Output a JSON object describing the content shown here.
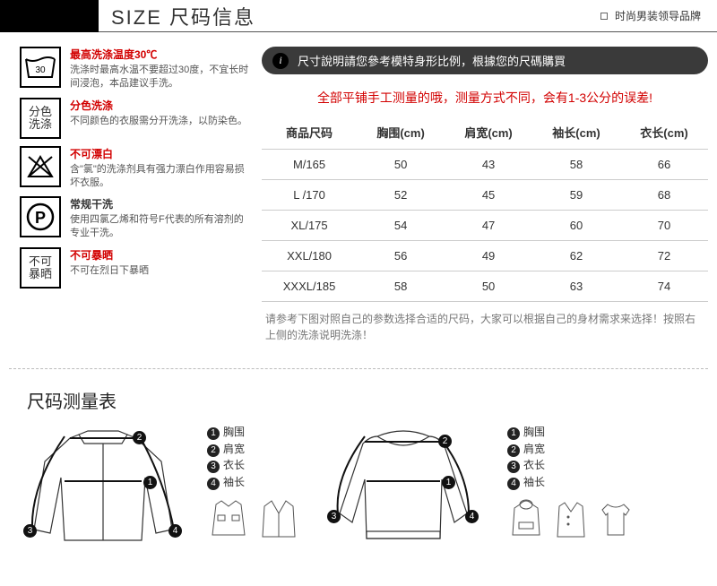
{
  "topbar": {
    "title": "SIZE 尺码信息",
    "brand_text": "时尚男装领导品牌"
  },
  "care": [
    {
      "icon_svg": "wash30",
      "title": "最高洗涤温度30℃",
      "title_color": "red",
      "desc": "洗涤时最高水温不要超过30度，不宜长时间浸泡，本品建议手洗。"
    },
    {
      "icon_svg": "text",
      "icon_text": "分色\n洗涤",
      "title": "分色洗涤",
      "title_color": "red",
      "desc": "不同颜色的衣服需分开洗涤，以防染色。"
    },
    {
      "icon_svg": "nobleach",
      "title": "不可漂白",
      "title_color": "red",
      "desc": "含\"氯\"的洗涤剂具有强力漂白作用容易损坏衣服。"
    },
    {
      "icon_svg": "pcircle",
      "title": "常规干洗",
      "title_color": "black",
      "desc": "使用四氯乙烯和符号F代表的所有溶剂的专业干洗。"
    },
    {
      "icon_svg": "text",
      "icon_text": "不可\n暴晒",
      "title": "不可暴晒",
      "title_color": "red",
      "desc": "不可在烈日下暴晒"
    }
  ],
  "pill": {
    "text": "尺寸說明請您參考模特身形比例，根據您的尺碼購買"
  },
  "warn": "全部平铺手工测量的哦，测量方式不同，会有1-3公分的误差!",
  "table": {
    "headers": [
      "商品尺码",
      "胸围(cm)",
      "肩宽(cm)",
      "袖长(cm)",
      "衣长(cm)"
    ],
    "rows": [
      [
        "M/165",
        "50",
        "43",
        "58",
        "66"
      ],
      [
        "L /170",
        "52",
        "45",
        "59",
        "68"
      ],
      [
        "XL/175",
        "54",
        "47",
        "60",
        "70"
      ],
      [
        "XXL/180",
        "56",
        "49",
        "62",
        "72"
      ],
      [
        "XXXL/185",
        "58",
        "50",
        "63",
        "74"
      ]
    ]
  },
  "table_note": "请参考下图对照自己的参数选择合适的尺码，大家可以根据自己的身材需求来选择！按照右上侧的洗涤说明洗涤！",
  "measure": {
    "title": "尺码测量表",
    "legend": [
      {
        "n": "1",
        "label": "胸围"
      },
      {
        "n": "2",
        "label": "肩宽"
      },
      {
        "n": "3",
        "label": "衣长"
      },
      {
        "n": "4",
        "label": "袖长"
      }
    ]
  },
  "colors": {
    "red": "#d20000",
    "black": "#000000",
    "pill_bg": "#3a3a3a",
    "border_gray": "#cccccc",
    "text_gray": "#777777"
  }
}
